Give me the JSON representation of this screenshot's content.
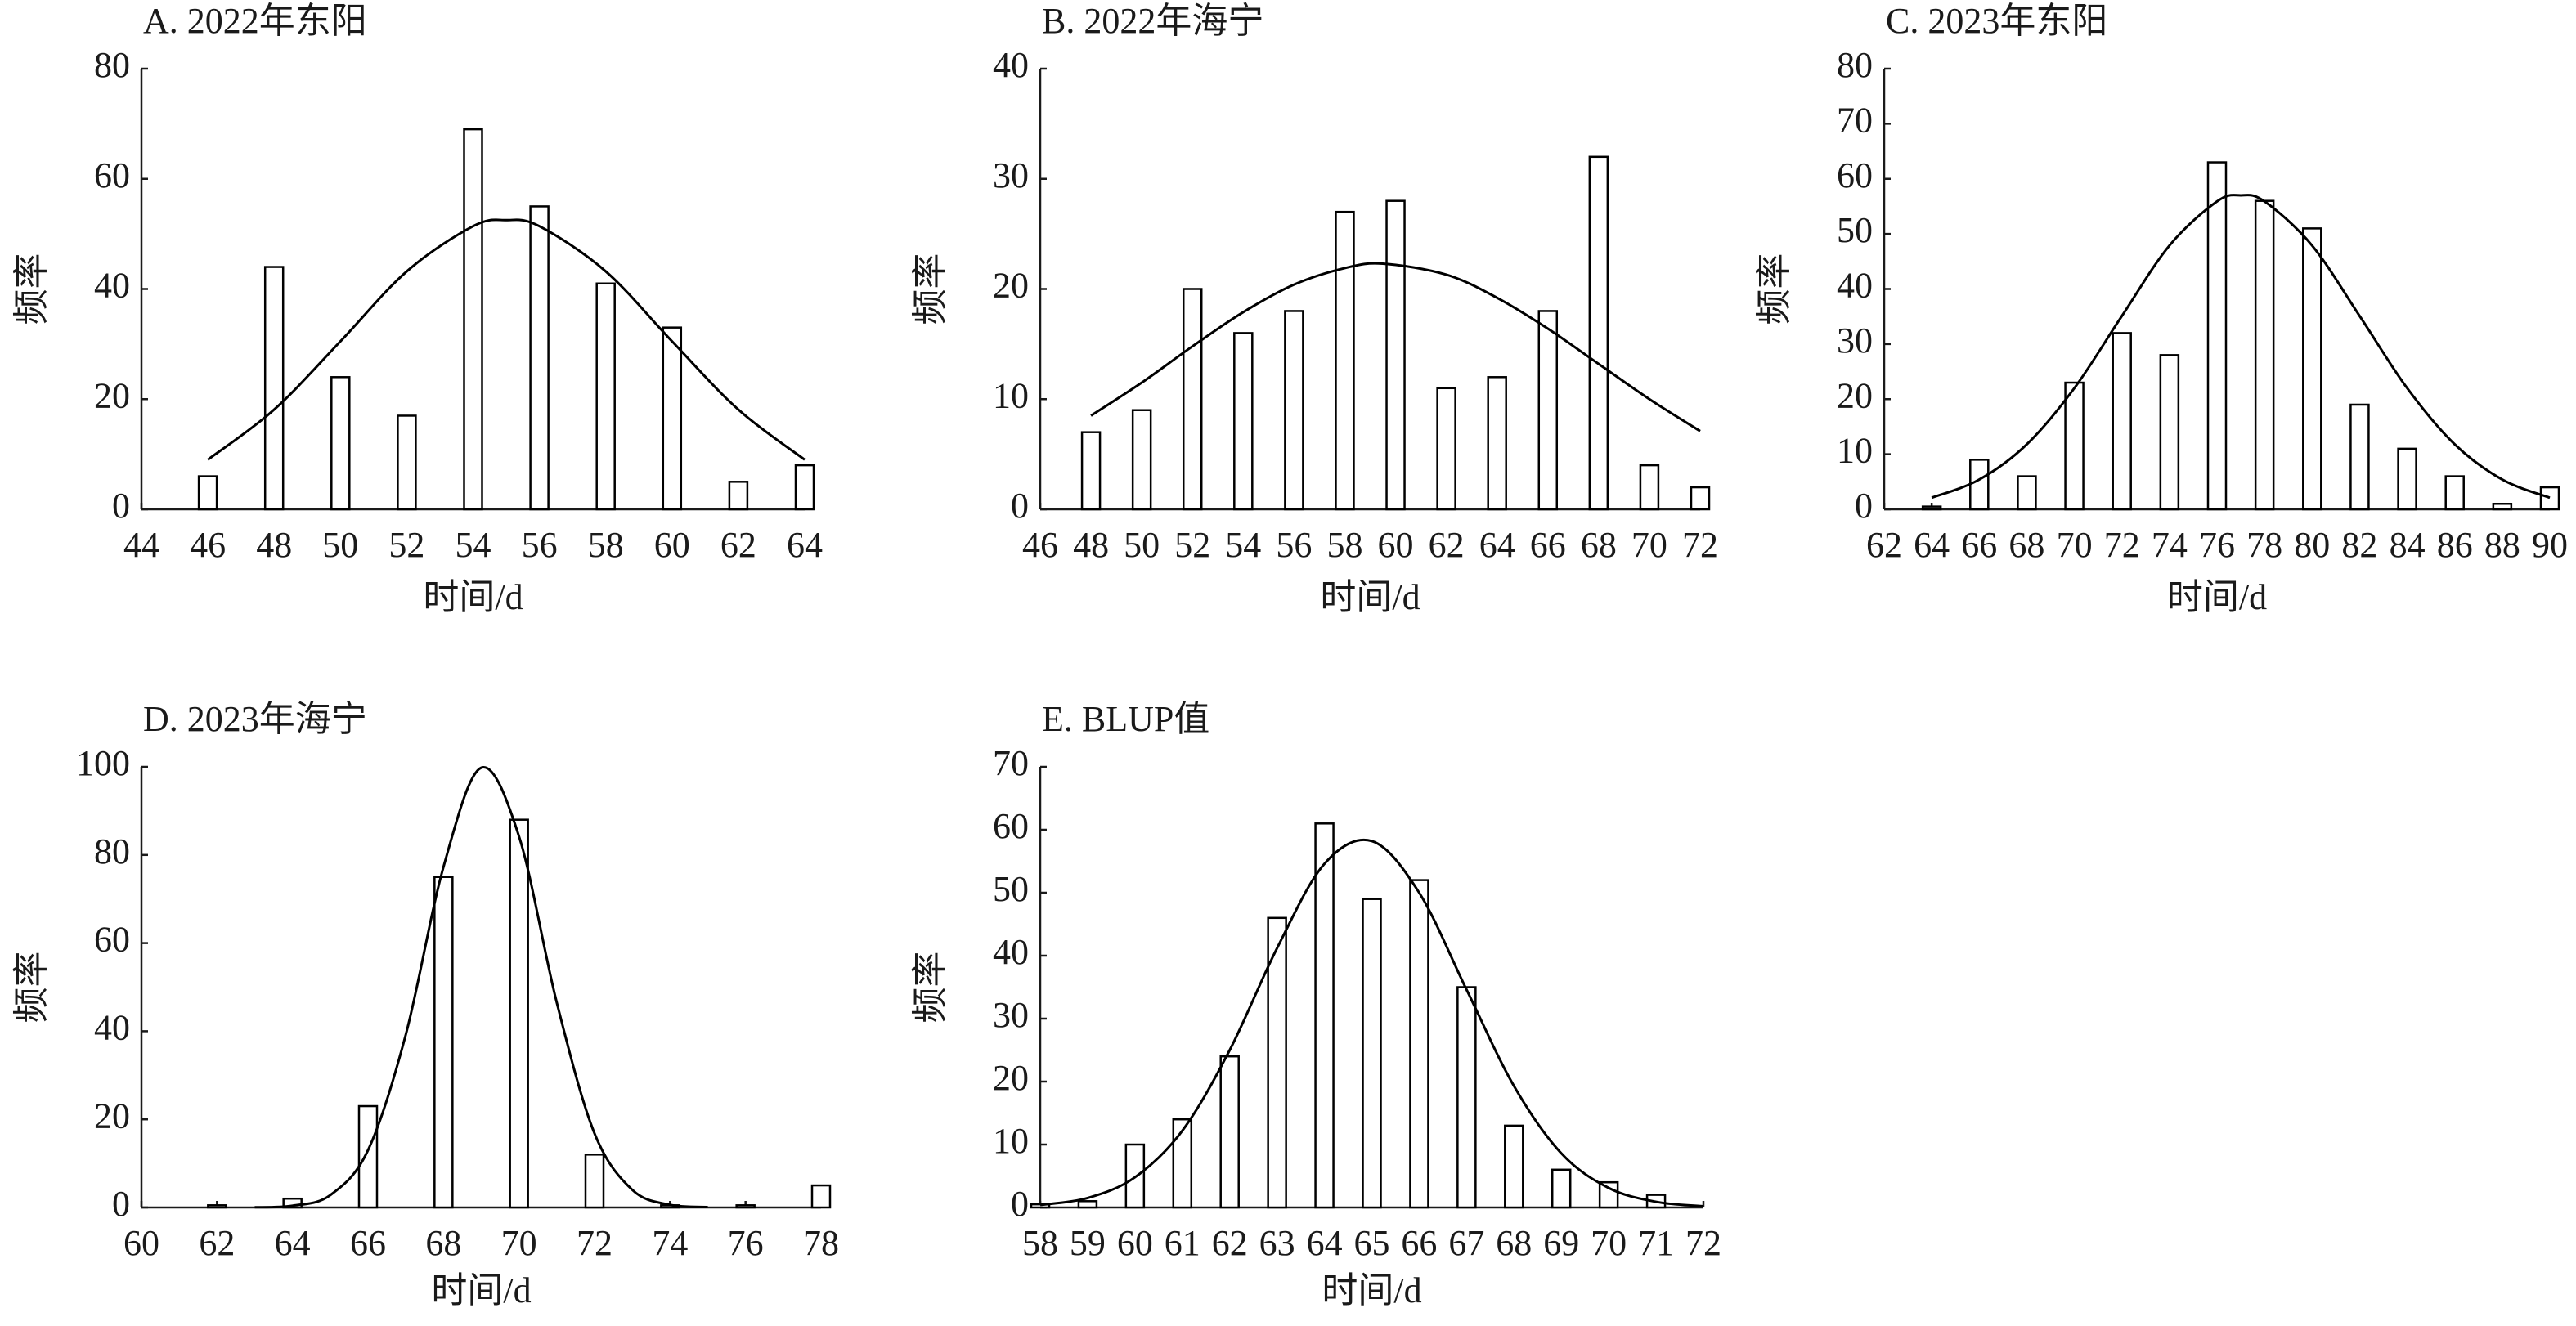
{
  "chart_data": [
    {
      "type": "bar",
      "title": "A. 2022年东阳",
      "x_label": "时间/d",
      "y_label": "频率",
      "color": "#ffffff",
      "edge_color": "#000000",
      "curve_color": "#000000",
      "x": [
        46,
        48,
        50,
        52,
        54,
        56,
        58,
        60,
        62,
        64
      ],
      "values": [
        6,
        44,
        24,
        17,
        69,
        55,
        41,
        33,
        5,
        8
      ],
      "curve": {
        "x": [
          46,
          48,
          50,
          52,
          54,
          55,
          56,
          58,
          60,
          62,
          64
        ],
        "values": [
          9.0,
          18.1,
          30.5,
          43.2,
          51.4,
          52.5,
          51.4,
          43.2,
          30.5,
          18.1,
          9.0
        ]
      },
      "xlim": [
        44,
        64
      ],
      "xticks": [
        44,
        46,
        48,
        50,
        52,
        54,
        56,
        58,
        60,
        62,
        64
      ],
      "ylim": [
        0,
        80
      ],
      "yticks": [
        0,
        20,
        40,
        60,
        80
      ]
    },
    {
      "type": "bar",
      "title": "B. 2022年海宁",
      "x_label": "时间/d",
      "y_label": "频率",
      "color": "#ffffff",
      "edge_color": "#000000",
      "curve_color": "#000000",
      "x": [
        48,
        50,
        52,
        54,
        56,
        58,
        60,
        62,
        64,
        66,
        68,
        70,
        72
      ],
      "values": [
        7,
        9,
        20,
        16,
        18,
        27,
        28,
        11,
        12,
        18,
        32,
        4,
        2
      ],
      "curve": {
        "x": [
          48,
          50,
          52,
          54,
          56,
          58,
          59.5,
          62,
          64,
          66,
          68,
          70,
          72
        ],
        "values": [
          8.5,
          11.5,
          14.8,
          17.9,
          20.4,
          21.9,
          22.3,
          21.3,
          19.2,
          16.4,
          13.2,
          10.0,
          7.1
        ]
      },
      "xlim": [
        46,
        72
      ],
      "xticks": [
        46,
        48,
        50,
        52,
        54,
        56,
        58,
        60,
        62,
        64,
        66,
        68,
        70,
        72
      ],
      "ylim": [
        0,
        40
      ],
      "yticks": [
        0,
        10,
        20,
        30,
        40
      ]
    },
    {
      "type": "bar",
      "title": "C. 2023年东阳",
      "x_label": "时间/d",
      "y_label": "频率",
      "color": "#ffffff",
      "edge_color": "#000000",
      "curve_color": "#000000",
      "x": [
        64,
        66,
        68,
        70,
        72,
        74,
        76,
        78,
        80,
        82,
        84,
        86,
        88,
        90
      ],
      "values": [
        0.5,
        9,
        6,
        23,
        32,
        28,
        63,
        56,
        51,
        19,
        11,
        6,
        1,
        4
      ],
      "curve": {
        "x": [
          64,
          66,
          68,
          70,
          72,
          74,
          76,
          77,
          78,
          80,
          82,
          84,
          86,
          88,
          90
        ],
        "values": [
          2.1,
          5.4,
          11.8,
          22.0,
          35.1,
          47.9,
          55.9,
          57,
          55.9,
          47.9,
          35.1,
          22.0,
          11.8,
          5.4,
          2.1
        ]
      },
      "xlim": [
        62,
        90
      ],
      "xticks": [
        62,
        64,
        66,
        68,
        70,
        72,
        74,
        76,
        78,
        80,
        82,
        84,
        86,
        88,
        90
      ],
      "ylim": [
        0,
        80
      ],
      "yticks": [
        0,
        10,
        20,
        30,
        40,
        50,
        60,
        70,
        80
      ]
    },
    {
      "type": "bar",
      "title": "D. 2023年海宁",
      "x_label": "时间/d",
      "y_label": "频率",
      "color": "#ffffff",
      "edge_color": "#000000",
      "curve_color": "#000000",
      "x": [
        62,
        64,
        66,
        68,
        70,
        72,
        74,
        76,
        78
      ],
      "values": [
        0.5,
        2,
        23,
        75,
        88,
        12,
        0.5,
        0.5,
        5
      ],
      "curve": {
        "x": [
          63,
          64,
          65,
          66,
          67,
          68,
          69,
          70,
          71,
          72,
          73,
          74,
          75
        ],
        "values": [
          0.04,
          0.4,
          2.8,
          13.0,
          39.2,
          77.3,
          99.8,
          84.2,
          46.5,
          16.8,
          4.0,
          0.6,
          0.1
        ]
      },
      "xlim": [
        60,
        78
      ],
      "xticks": [
        60,
        62,
        64,
        66,
        68,
        70,
        72,
        74,
        76,
        78
      ],
      "ylim": [
        0,
        100
      ],
      "yticks": [
        0,
        20,
        40,
        60,
        80,
        100
      ]
    },
    {
      "type": "bar",
      "title": "E. BLUP值",
      "x_label": "时间/d",
      "y_label": "频率",
      "color": "#ffffff",
      "edge_color": "#000000",
      "curve_color": "#000000",
      "x": [
        58,
        59,
        60,
        61,
        62,
        63,
        64,
        65,
        66,
        67,
        68,
        69,
        70,
        71
      ],
      "values": [
        0.5,
        1,
        10,
        14,
        24,
        46,
        61,
        49,
        52,
        35,
        13,
        6,
        4,
        2
      ],
      "curve": {
        "x": [
          58,
          59,
          60,
          61,
          62,
          63,
          64,
          65,
          66,
          67,
          68,
          69,
          70,
          71,
          72
        ],
        "values": [
          0.4,
          1.5,
          4.8,
          12.2,
          25.0,
          41.2,
          54.6,
          58.2,
          50.0,
          34.6,
          19.3,
          8.6,
          3.1,
          0.9,
          0.2
        ]
      },
      "xlim": [
        58,
        72
      ],
      "xticks": [
        58,
        59,
        60,
        61,
        62,
        63,
        64,
        65,
        66,
        67,
        68,
        69,
        70,
        71,
        72
      ],
      "ylim": [
        0,
        70
      ],
      "yticks": [
        0,
        10,
        20,
        30,
        40,
        50,
        60,
        70
      ]
    }
  ]
}
